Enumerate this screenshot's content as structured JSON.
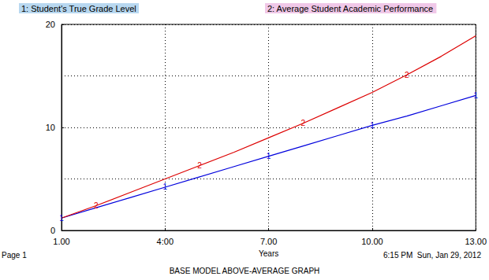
{
  "chart_data": {
    "type": "line",
    "title": "BASE MODEL ABOVE-AVERAGE GRAPH",
    "x_label": "Years",
    "footer": {
      "page": "Page 1",
      "timestamp": "6:15 PM  Sun, Jan 29, 2012"
    },
    "x": [
      1,
      2,
      3,
      4,
      5,
      6,
      7,
      8,
      9,
      10,
      11,
      12,
      13
    ],
    "series": [
      {
        "name": "1: Student's True Grade Level",
        "color": "#0000dd",
        "marker": "1",
        "values": [
          1.2,
          2.2,
          3.2,
          4.2,
          5.2,
          6.2,
          7.2,
          8.2,
          9.2,
          10.2,
          11.1,
          12.1,
          13.1
        ]
      },
      {
        "name": "2: Average Student Academic Performance",
        "color": "#dd0000",
        "marker": "2",
        "values": [
          1.2,
          2.4,
          3.7,
          5.0,
          6.3,
          7.6,
          9.0,
          10.4,
          11.9,
          13.4,
          15.1,
          16.9,
          18.9
        ]
      }
    ],
    "xlim": [
      1,
      13
    ],
    "xticks": [
      {
        "value": 1,
        "label": "1.00"
      },
      {
        "value": 4,
        "label": "4:00"
      },
      {
        "value": 7,
        "label": "7.00"
      },
      {
        "value": 10,
        "label": "10.00"
      },
      {
        "value": 13,
        "label": "13.00"
      }
    ],
    "ylim": [
      0,
      20
    ],
    "yticks": [
      0,
      10,
      20
    ],
    "grid": true,
    "legend": "top"
  }
}
